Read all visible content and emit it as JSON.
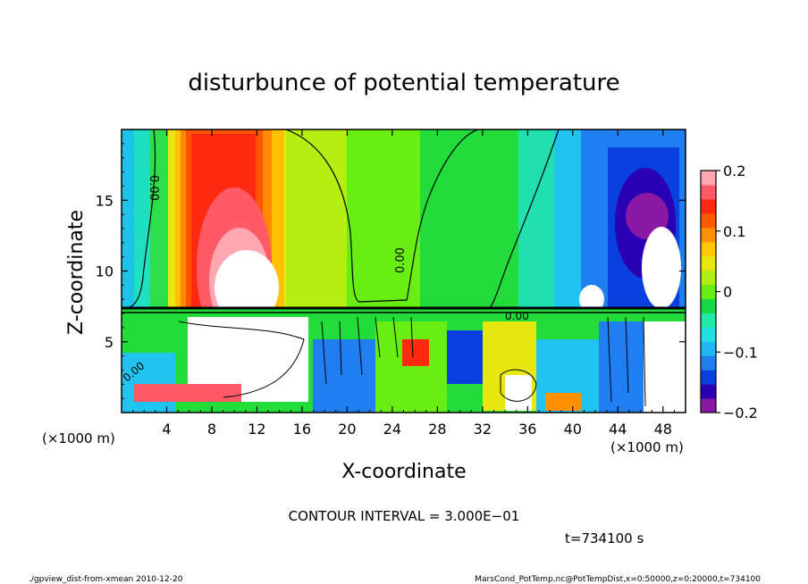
{
  "chart_data": {
    "type": "heatmap",
    "title": "disturbunce of potential temperature",
    "xlabel": "X-coordinate",
    "ylabel": "Z-coordinate",
    "x_unit": "(×1000 m)",
    "x_unit_right": "(×1000 m)",
    "xlim": [
      0,
      50
    ],
    "ylim": [
      0,
      20
    ],
    "x_ticks": [
      4,
      8,
      12,
      16,
      20,
      24,
      28,
      32,
      36,
      40,
      44,
      48
    ],
    "x_tick_labels": [
      "4",
      "8",
      "12",
      "16",
      "20",
      "24",
      "28",
      "32",
      "36",
      "40",
      "44",
      "48"
    ],
    "y_ticks": [
      5,
      10,
      15
    ],
    "y_tick_labels": [
      "5",
      "10",
      "15"
    ],
    "colorbar": {
      "range": [
        -0.2,
        0.2
      ],
      "ticks": [
        0.2,
        0.1,
        0,
        -0.1,
        -0.2
      ],
      "tick_labels": [
        "0.2",
        "0.1",
        "0",
        "−0.1",
        "−0.2"
      ],
      "colors": [
        "#8a1aa6",
        "#2a00b3",
        "#0a3fe0",
        "#1f7ef0",
        "#1fb8f2",
        "#20e0e0",
        "#1fe8a8",
        "#17d848",
        "#68ee12",
        "#b0ee10",
        "#e8e810",
        "#ffc800",
        "#ff9000",
        "#ff5a00",
        "#ff2a10",
        "#ff5a66",
        "#ffa8b2"
      ]
    },
    "contour_labels": [
      "0.00",
      "0.00",
      "0.00",
      "0.00"
    ],
    "annotations": {
      "contour_interval": "CONTOUR INTERVAL = 3.000E−01",
      "time": "t=734100  s",
      "script": "./gpview_dist-from-xmean  2010-12-20",
      "source": "MarsCond_PotTemp.nc@PotTempDist,x=0:50000,z=0:20000,t=734100"
    }
  }
}
